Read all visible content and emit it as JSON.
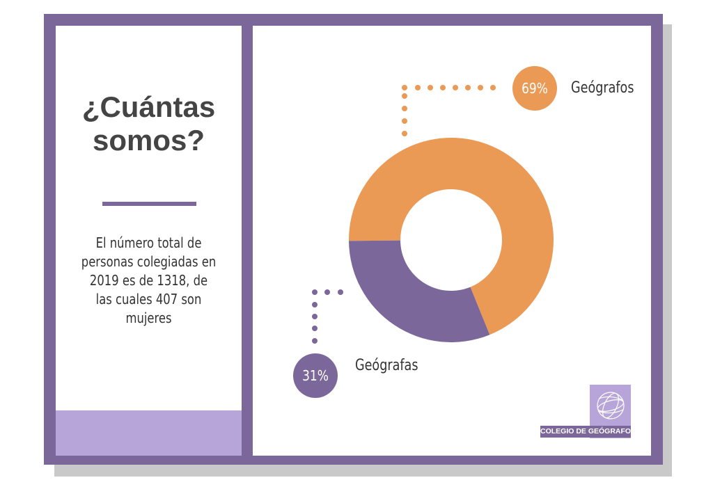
{
  "title_lines": [
    "¿Cuántas",
    "somos?"
  ],
  "description": "El número total de personas colegiadas en 2019 es de 1318, de las cuales 407 son mujeres",
  "logo_text": "COLEGIO DE GEÓGRAFOS",
  "colors": {
    "purple": "#7b679a",
    "orange": "#eb9a56",
    "lavender": "#b7a4d8"
  },
  "chart_data": {
    "type": "pie",
    "donut": true,
    "title": "",
    "slices": [
      {
        "label": "Geógrafos",
        "value": 69,
        "value_label": "69%",
        "color": "#eb9a56"
      },
      {
        "label": "Geógrafas",
        "value": 31,
        "value_label": "31%",
        "color": "#7b679a"
      }
    ]
  }
}
